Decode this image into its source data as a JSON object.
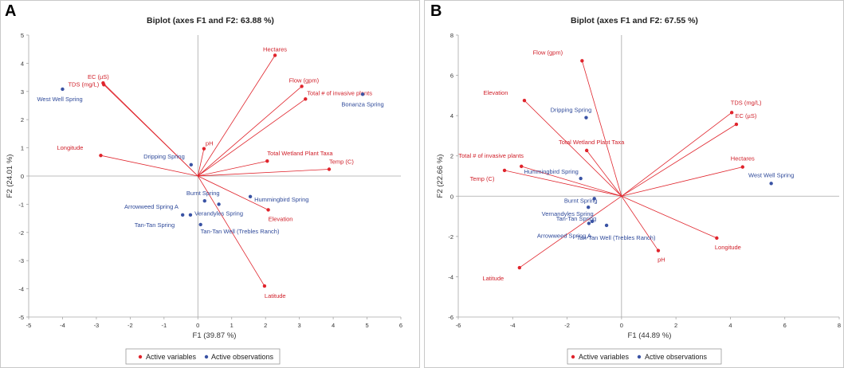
{
  "colors": {
    "variable": "#e0242c",
    "observation": "#3a53a4",
    "variable_text": "#d0202a",
    "observation_text": "#2f4a9a"
  },
  "legend": {
    "variables": "Active variables",
    "observations": "Active observations"
  },
  "chart_data": [
    {
      "type": "scatter",
      "panel": "A",
      "title": "Biplot (axes F1 and F2: 63.88 %)",
      "xlabel": "F1 (39.87 %)",
      "ylabel": "F2 (24.01 %)",
      "xlim": [
        -5,
        6
      ],
      "ylim": [
        -5,
        5
      ],
      "xticks": [
        -5,
        -4,
        -3,
        -2,
        -1,
        0,
        1,
        2,
        3,
        4,
        5,
        6
      ],
      "yticks": [
        -5,
        -4,
        -3,
        -2,
        -1,
        0,
        1,
        2,
        3,
        4,
        5
      ],
      "variables": [
        {
          "name": "Hectares",
          "x": 2.28,
          "y": 4.28,
          "lx": 0,
          "ly": -8,
          "anchor": "middle"
        },
        {
          "name": "Flow (gpm)",
          "x": 3.07,
          "y": 3.18,
          "lx": -16,
          "ly": -8,
          "anchor": "start"
        },
        {
          "name": "Total # of invasive plants",
          "x": 3.18,
          "y": 2.73,
          "lx": 2,
          "ly": -8,
          "anchor": "start"
        },
        {
          "name": "EC (µS)",
          "x": -2.8,
          "y": 3.3,
          "lx": -6,
          "ly": -8,
          "anchor": "middle"
        },
        {
          "name": "TDS (mg/L)",
          "x": -2.78,
          "y": 3.24,
          "lx": -6,
          "ly": -1,
          "anchor": "end"
        },
        {
          "name": "pH",
          "x": 0.18,
          "y": 0.97,
          "lx": 2,
          "ly": -7,
          "anchor": "start"
        },
        {
          "name": "Longitude",
          "x": -2.87,
          "y": 0.73,
          "lx": -22,
          "ly": -10,
          "anchor": "end"
        },
        {
          "name": "Total Wetland Plant Taxa",
          "x": 2.05,
          "y": 0.53,
          "lx": 0,
          "ly": -10,
          "anchor": "start"
        },
        {
          "name": "Temp (C)",
          "x": 3.88,
          "y": 0.24,
          "lx": 0,
          "ly": -10,
          "anchor": "start"
        },
        {
          "name": "Elevation",
          "x": 2.08,
          "y": -1.2,
          "lx": 0,
          "ly": 11,
          "anchor": "start"
        },
        {
          "name": "Latitude",
          "x": 1.97,
          "y": -3.9,
          "lx": 0,
          "ly": 12,
          "anchor": "start"
        }
      ],
      "observations": [
        {
          "name": "West Well Spring",
          "x": -4.0,
          "y": 3.08,
          "lx": -32,
          "ly": 12,
          "anchor": "start"
        },
        {
          "name": "Bonanza Spring",
          "x": 4.87,
          "y": 2.9,
          "lx": 0,
          "ly": 12,
          "anchor": "middle"
        },
        {
          "name": "Dripping Spring",
          "x": -0.2,
          "y": 0.4,
          "lx": -8,
          "ly": -11,
          "anchor": "end"
        },
        {
          "name": "Burnt Spring",
          "x": 0.2,
          "y": -0.88,
          "lx": -2,
          "ly": -10,
          "anchor": "middle"
        },
        {
          "name": "Hummingbird Spring",
          "x": 1.55,
          "y": -0.73,
          "lx": 5,
          "ly": 3,
          "anchor": "start"
        },
        {
          "name": "Verandyles Spring",
          "x": 0.62,
          "y": -1.0,
          "lx": 0,
          "ly": 11,
          "anchor": "middle"
        },
        {
          "name": "Arrowweed Spring A",
          "x": -0.22,
          "y": -1.38,
          "lx": -15,
          "ly": -11,
          "anchor": "end"
        },
        {
          "name": "Tan-Tan Spring",
          "x": -0.45,
          "y": -1.38,
          "lx": -10,
          "ly": 12,
          "anchor": "end"
        },
        {
          "name": "Tan-Tan Well (Trebles Ranch)",
          "x": 0.08,
          "y": -1.72,
          "lx": 0,
          "ly": 8,
          "anchor": "start"
        }
      ]
    },
    {
      "type": "scatter",
      "panel": "B",
      "title": "Biplot (axes F1 and F2: 67.55 %)",
      "xlabel": "F1 (44.89 %)",
      "ylabel": "F2 (22.66 %)",
      "xlim": [
        -6,
        8
      ],
      "ylim": [
        -6,
        8
      ],
      "xticks": [
        -6,
        -4,
        -2,
        0,
        2,
        4,
        6,
        8
      ],
      "yticks": [
        -6,
        -4,
        -2,
        0,
        2,
        4,
        6,
        8
      ],
      "variables": [
        {
          "name": "Flow (gpm)",
          "x": -1.45,
          "y": 6.72,
          "lx": -43,
          "ly": -11,
          "anchor": "middle"
        },
        {
          "name": "Elevation",
          "x": -3.57,
          "y": 4.75,
          "lx": -36,
          "ly": -10,
          "anchor": "middle"
        },
        {
          "name": "TDS (mg/L)",
          "x": 4.05,
          "y": 4.15,
          "lx": 18,
          "ly": -13,
          "anchor": "middle"
        },
        {
          "name": "EC (µS)",
          "x": 4.22,
          "y": 3.57,
          "lx": 12,
          "ly": -11,
          "anchor": "middle"
        },
        {
          "name": "Total Wetland Plant Taxa",
          "x": -1.28,
          "y": 2.27,
          "lx": 6,
          "ly": -11,
          "anchor": "middle"
        },
        {
          "name": "Hectares",
          "x": 4.45,
          "y": 1.45,
          "lx": 0,
          "ly": -11,
          "anchor": "middle"
        },
        {
          "name": "Total # of invasive plants",
          "x": -3.68,
          "y": 1.48,
          "lx": -38,
          "ly": -14,
          "anchor": "middle"
        },
        {
          "name": "Temp (C)",
          "x": -4.3,
          "y": 1.28,
          "lx": -28,
          "ly": 10,
          "anchor": "middle"
        },
        {
          "name": "Longitude",
          "x": 3.5,
          "y": -2.08,
          "lx": 14,
          "ly": 11,
          "anchor": "middle"
        },
        {
          "name": "pH",
          "x": 1.35,
          "y": -2.7,
          "lx": 4,
          "ly": 11,
          "anchor": "middle"
        },
        {
          "name": "Latitude",
          "x": -3.75,
          "y": -3.55,
          "lx": -33,
          "ly": 13,
          "anchor": "middle"
        }
      ],
      "observations": [
        {
          "name": "Dripping Spring",
          "x": -1.3,
          "y": 3.9,
          "lx": -19,
          "ly": -10,
          "anchor": "middle"
        },
        {
          "name": "West Well Spring",
          "x": 5.5,
          "y": 0.63,
          "lx": 0,
          "ly": -11,
          "anchor": "middle"
        },
        {
          "name": "Hummingbird Spring",
          "x": -1.5,
          "y": 0.88,
          "lx": -37,
          "ly": -9,
          "anchor": "middle"
        },
        {
          "name": "Burnt Spring",
          "x": -1.0,
          "y": -0.12,
          "lx": -17,
          "ly": 2,
          "anchor": "middle"
        },
        {
          "name": "Vernandyles Spring",
          "x": -1.22,
          "y": -0.55,
          "lx": -26,
          "ly": 8,
          "anchor": "middle"
        },
        {
          "name": "Tan-Tan Spring",
          "x": -1.08,
          "y": -1.25,
          "lx": -20,
          "ly": -4,
          "anchor": "middle"
        },
        {
          "name": "Arrowweed Spring A",
          "x": -1.2,
          "y": -1.35,
          "lx": -31,
          "ly": 15,
          "anchor": "middle"
        },
        {
          "name": "Tan-Tan Well (Trebles Ranch)",
          "x": -0.55,
          "y": -1.45,
          "lx": 12,
          "ly": 15,
          "anchor": "middle"
        }
      ]
    }
  ]
}
